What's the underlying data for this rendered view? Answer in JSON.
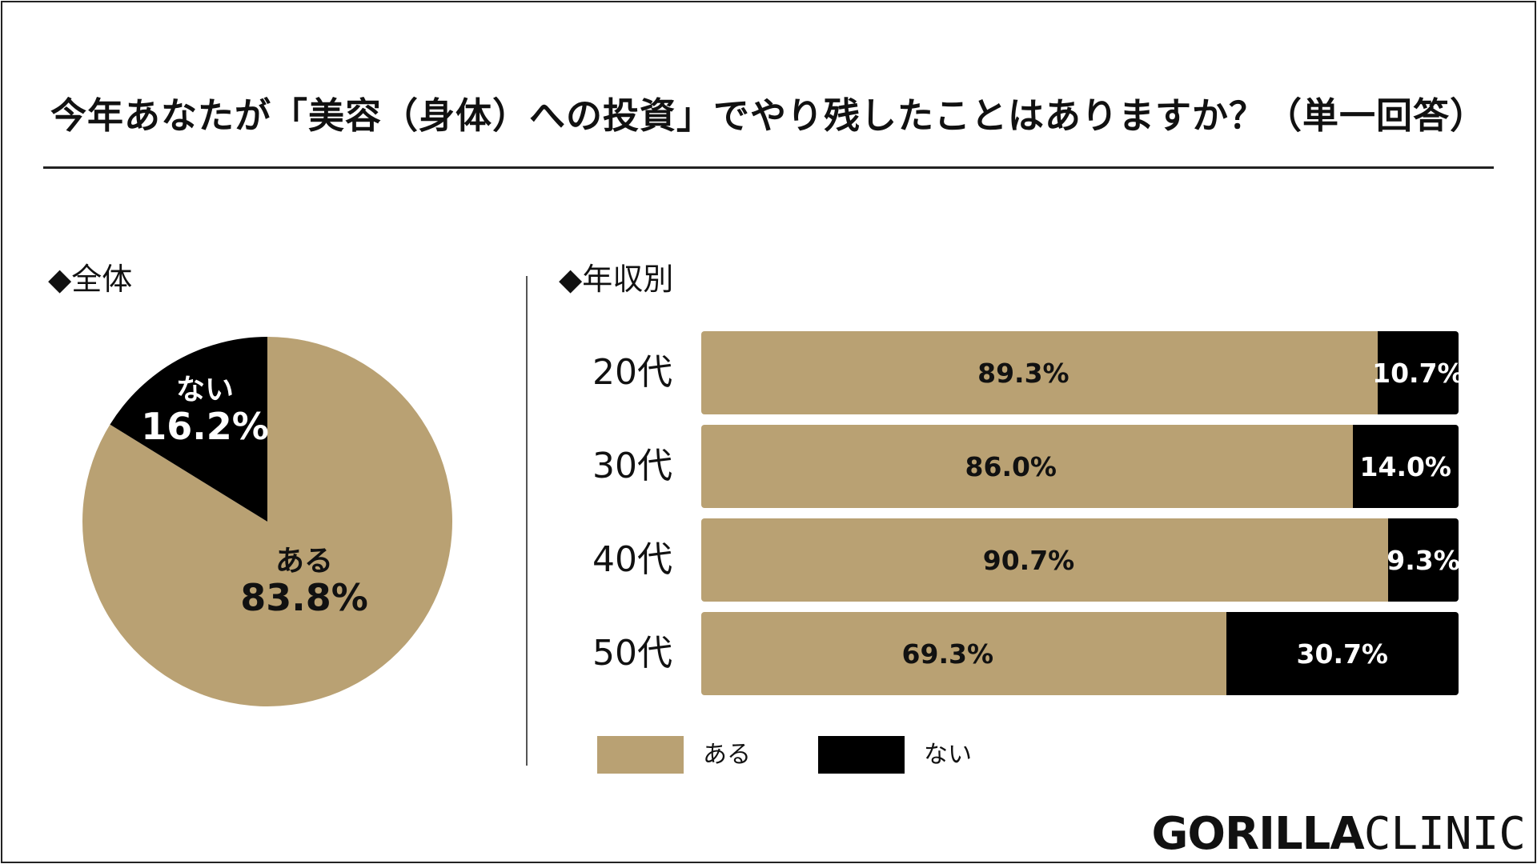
{
  "title": "今年あなたが「美容（身体）への投資」でやり残したことはありますか？（単一回答）",
  "colors": {
    "aru": "#b9a173",
    "nai": "#000000"
  },
  "overall": {
    "heading": "◆全体",
    "slices": [
      {
        "label": "ある",
        "value_text": "83.8%"
      },
      {
        "label": "ない",
        "value_text": "16.2%"
      }
    ]
  },
  "by_income": {
    "heading": "◆年収別"
  },
  "legend": [
    {
      "label": "ある"
    },
    {
      "label": "ない"
    }
  ],
  "chart_data": [
    {
      "type": "pie",
      "title": "◆全体",
      "categories": [
        "ある",
        "ない"
      ],
      "values": [
        83.8,
        16.2
      ],
      "unit": "%"
    },
    {
      "type": "bar",
      "orientation": "horizontal",
      "stacked": true,
      "title": "◆年収別",
      "categories": [
        "20代",
        "30代",
        "40代",
        "50代"
      ],
      "series": [
        {
          "name": "ある",
          "values": [
            89.3,
            86.0,
            90.7,
            69.3
          ],
          "labels": [
            "89.3%",
            "86.0%",
            "90.7%",
            "69.3%"
          ]
        },
        {
          "name": "ない",
          "values": [
            10.7,
            14.0,
            9.3,
            30.7
          ],
          "labels": [
            "10.7%",
            "14.0%",
            "9.3%",
            "30.7%"
          ]
        }
      ],
      "xlim": [
        0,
        100
      ],
      "legend": "bottom"
    }
  ],
  "logo": {
    "part1": "GORILLA",
    "part2": "CLINIC"
  }
}
